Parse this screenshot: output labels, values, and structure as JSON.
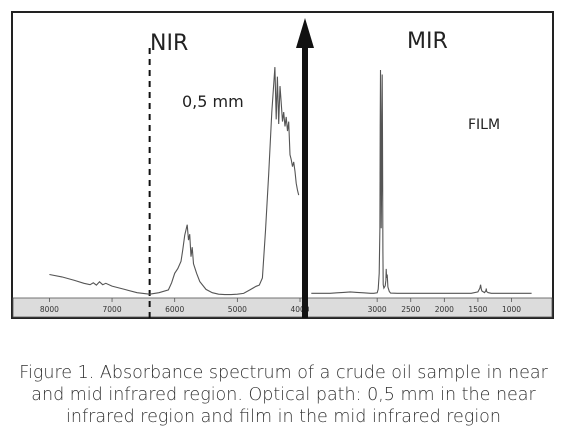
{
  "chart_data": {
    "type": "line",
    "title": "",
    "xlabel": "",
    "ylabel": "",
    "panels": [
      {
        "name": "nir",
        "label": "NIR",
        "annotation": "0,5 mm",
        "x_ticks": [
          8000,
          7000,
          6000,
          5000,
          4000
        ],
        "xlim": [
          8150,
          4000
        ],
        "ylim": [
          0,
          1
        ],
        "marker_line_x": 6400,
        "x": [
          8000,
          7800,
          7600,
          7450,
          7350,
          7300,
          7250,
          7200,
          7150,
          7100,
          7000,
          6800,
          6600,
          6400,
          6250,
          6100,
          6050,
          6000,
          5950,
          5900,
          5870,
          5840,
          5800,
          5780,
          5760,
          5740,
          5720,
          5700,
          5650,
          5600,
          5500,
          5400,
          5300,
          5200,
          5100,
          5000,
          4900,
          4800,
          4700,
          4650,
          4600,
          4550,
          4500,
          4450,
          4400,
          4380,
          4360,
          4340,
          4320,
          4300,
          4280,
          4260,
          4240,
          4220,
          4200,
          4180,
          4160,
          4140,
          4120,
          4100,
          4080,
          4060,
          4040,
          4020
        ],
        "y": [
          0.095,
          0.085,
          0.07,
          0.058,
          0.052,
          0.06,
          0.05,
          0.064,
          0.052,
          0.058,
          0.046,
          0.032,
          0.018,
          0.012,
          0.018,
          0.03,
          0.06,
          0.1,
          0.12,
          0.15,
          0.2,
          0.26,
          0.305,
          0.24,
          0.265,
          0.17,
          0.21,
          0.14,
          0.1,
          0.065,
          0.032,
          0.018,
          0.012,
          0.01,
          0.01,
          0.012,
          0.015,
          0.03,
          0.045,
          0.05,
          0.08,
          0.28,
          0.52,
          0.78,
          0.97,
          0.75,
          0.93,
          0.73,
          0.89,
          0.82,
          0.74,
          0.78,
          0.72,
          0.76,
          0.7,
          0.74,
          0.6,
          0.58,
          0.55,
          0.57,
          0.53,
          0.48,
          0.45,
          0.43
        ]
      },
      {
        "name": "mir",
        "label": "MIR",
        "annotation": "FILM",
        "x_ticks": [
          3000,
          2500,
          2000,
          1500,
          1000
        ],
        "xlim": [
          4000,
          650
        ],
        "ylim": [
          0,
          1
        ],
        "x": [
          3980,
          3900,
          3800,
          3700,
          3600,
          3500,
          3400,
          3300,
          3200,
          3100,
          3050,
          3000,
          2985,
          2970,
          2960,
          2955,
          2950,
          2945,
          2940,
          2930,
          2925,
          2920,
          2915,
          2910,
          2900,
          2880,
          2870,
          2865,
          2860,
          2850,
          2840,
          2820,
          2800,
          2700,
          2600,
          2500,
          2400,
          2300,
          2200,
          2100,
          2000,
          1900,
          1800,
          1700,
          1600,
          1500,
          1470,
          1460,
          1450,
          1440,
          1420,
          1400,
          1380,
          1375,
          1370,
          1350,
          1300,
          1200,
          1100,
          1000,
          900,
          800,
          700
        ],
        "y": [
          0.012,
          0.012,
          0.012,
          0.012,
          0.014,
          0.016,
          0.018,
          0.016,
          0.014,
          0.012,
          0.012,
          0.014,
          0.03,
          0.1,
          0.3,
          0.75,
          1.0,
          0.8,
          0.3,
          0.6,
          0.98,
          0.7,
          0.2,
          0.05,
          0.035,
          0.045,
          0.07,
          0.12,
          0.08,
          0.095,
          0.04,
          0.02,
          0.013,
          0.012,
          0.012,
          0.012,
          0.012,
          0.012,
          0.012,
          0.012,
          0.012,
          0.012,
          0.012,
          0.012,
          0.012,
          0.018,
          0.035,
          0.05,
          0.03,
          0.022,
          0.018,
          0.015,
          0.025,
          0.033,
          0.02,
          0.015,
          0.012,
          0.012,
          0.012,
          0.012,
          0.012,
          0.012,
          0.012
        ]
      }
    ],
    "grid": false,
    "legend": "none"
  },
  "caption": [
    "Figure 1. Absorbance spectrum of a crude oil sample in near",
    "and mid infrared region. Optical path: 0,5 mm in the near",
    "infrared region and film in the mid infrared region"
  ],
  "colors": {
    "frame": "#222222",
    "line": "#555555",
    "axis_strip": "#dcdcdc",
    "divider": "#111111",
    "text": "#222222",
    "caption": "#333333"
  }
}
